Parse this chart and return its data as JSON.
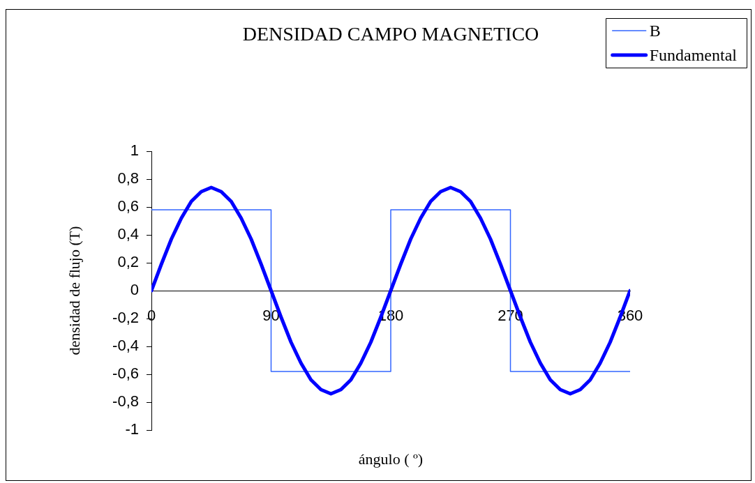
{
  "chart_data": {
    "type": "line",
    "title": "DENSIDAD CAMPO MAGNETICO",
    "xlabel": "ángulo ( º)",
    "ylabel": "densidad de flujo (T)",
    "xlim": [
      0,
      360
    ],
    "xticks": [
      0,
      90,
      180,
      270,
      360
    ],
    "ylim": [
      -1,
      1
    ],
    "yticks": [
      -1,
      {
        "value": -0.8,
        "label": "-0,8"
      },
      {
        "value": -0.6,
        "label": "-0,6"
      },
      {
        "value": -0.4,
        "label": "-0,4"
      },
      {
        "value": -0.2,
        "label": "-0,2"
      },
      0,
      {
        "value": 0.2,
        "label": "0,2"
      },
      {
        "value": 0.4,
        "label": "0,4"
      },
      {
        "value": 0.6,
        "label": "0,6"
      },
      {
        "value": 0.8,
        "label": "0,8"
      },
      1
    ],
    "legend": "top right",
    "marker": "none",
    "series": [
      {
        "name": "B",
        "type": "step",
        "color": "#3366ff",
        "x": [
          0,
          90,
          180,
          270,
          360
        ],
        "values": [
          0.58,
          -0.58,
          0.58,
          -0.58,
          -0.58
        ]
      },
      {
        "name": "Fundamental",
        "type": "line",
        "color": "#0000ff",
        "x": [
          0,
          7.5,
          15,
          22.5,
          30,
          37.5,
          45,
          52.5,
          60,
          67.5,
          75,
          82.5,
          90,
          97.5,
          105,
          112.5,
          120,
          127.5,
          135,
          142.5,
          150,
          157.5,
          165,
          172.5,
          180,
          187.5,
          195,
          202.5,
          210,
          217.5,
          225,
          232.5,
          240,
          247.5,
          255,
          262.5,
          270,
          277.5,
          285,
          292.5,
          300,
          307.5,
          315,
          322.5,
          330,
          337.5,
          345,
          352.5,
          360
        ],
        "values": [
          0,
          0.19,
          0.37,
          0.52,
          0.64,
          0.71,
          0.74,
          0.71,
          0.64,
          0.52,
          0.37,
          0.19,
          0,
          -0.19,
          -0.37,
          -0.52,
          -0.64,
          -0.71,
          -0.74,
          -0.71,
          -0.64,
          -0.52,
          -0.37,
          -0.19,
          0,
          0.19,
          0.37,
          0.52,
          0.64,
          0.71,
          0.74,
          0.71,
          0.64,
          0.52,
          0.37,
          0.19,
          0,
          -0.19,
          -0.37,
          -0.52,
          -0.64,
          -0.71,
          -0.74,
          -0.71,
          -0.64,
          -0.52,
          -0.37,
          -0.19,
          0
        ]
      }
    ]
  }
}
